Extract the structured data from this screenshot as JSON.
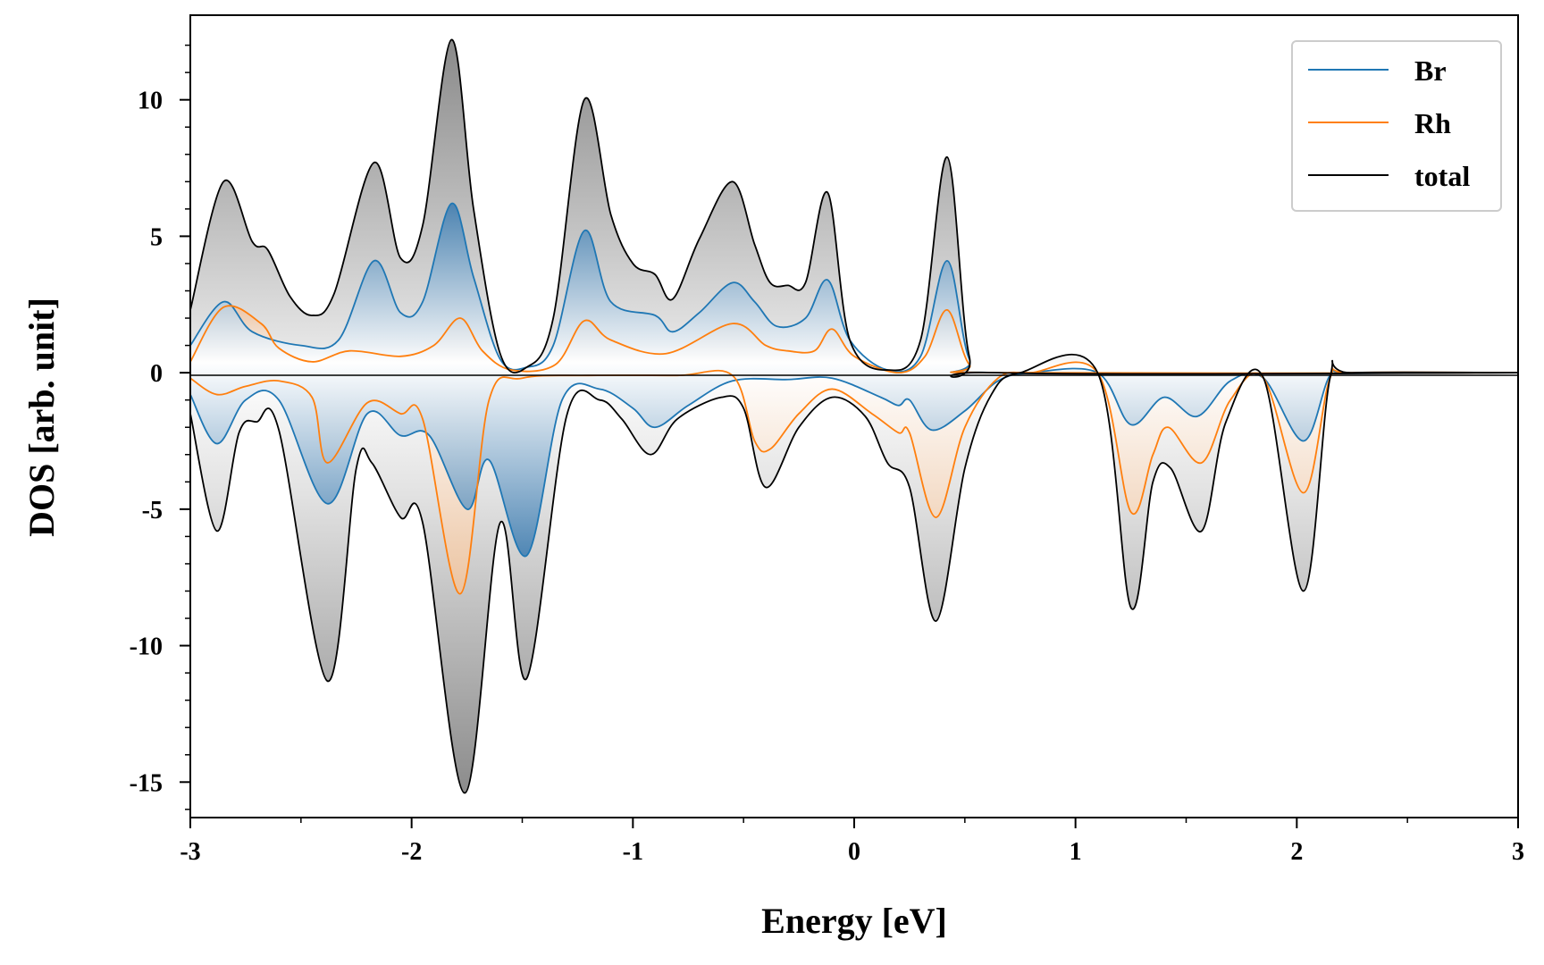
{
  "chart_data": {
    "type": "line",
    "xlabel": "Energy [eV]",
    "ylabel": "DOS [arb. unit]",
    "xlim": [
      -3,
      3
    ],
    "ylim": [
      -16.3,
      13.1
    ],
    "x_ticks": [
      -3,
      -2,
      -1,
      0,
      1,
      2,
      3
    ],
    "x_tick_labels": [
      "-3",
      "-2",
      "-1",
      "0",
      "1",
      "2",
      "3"
    ],
    "y_ticks": [
      10,
      5,
      0,
      -5,
      -10,
      -15
    ],
    "y_tick_labels": [
      "10",
      "5",
      "0",
      "-5",
      "-10",
      "-15"
    ],
    "grid": false,
    "legend_position": "top-right",
    "fills": "gradient shading between each curve and zero",
    "series": [
      {
        "name": "Br",
        "color": "#1f77b4",
        "up": [
          [
            -3,
            1.0
          ],
          [
            -2.85,
            2.6
          ],
          [
            -2.72,
            1.5
          ],
          [
            -2.5,
            1.0
          ],
          [
            -2.33,
            1.2
          ],
          [
            -2.17,
            4.1
          ],
          [
            -2.05,
            2.2
          ],
          [
            -1.95,
            2.6
          ],
          [
            -1.82,
            6.2
          ],
          [
            -1.72,
            3.5
          ],
          [
            -1.6,
            0.5
          ],
          [
            -1.48,
            0.2
          ],
          [
            -1.36,
            1.0
          ],
          [
            -1.22,
            5.2
          ],
          [
            -1.1,
            2.6
          ],
          [
            -0.9,
            2.1
          ],
          [
            -0.82,
            1.5
          ],
          [
            -0.7,
            2.2
          ],
          [
            -0.55,
            3.3
          ],
          [
            -0.45,
            2.6
          ],
          [
            -0.35,
            1.7
          ],
          [
            -0.22,
            2.0
          ],
          [
            -0.12,
            3.4
          ],
          [
            -0.02,
            1.2
          ],
          [
            0.15,
            0.1
          ],
          [
            0.3,
            0.6
          ],
          [
            0.42,
            4.1
          ],
          [
            0.52,
            0.5
          ],
          [
            0.65,
            0.0
          ],
          [
            3,
            0.0
          ]
        ],
        "down": [
          [
            -3,
            -0.8
          ],
          [
            -2.88,
            -2.6
          ],
          [
            -2.75,
            -1.0
          ],
          [
            -2.6,
            -1.0
          ],
          [
            -2.38,
            -4.8
          ],
          [
            -2.2,
            -1.5
          ],
          [
            -2.05,
            -2.3
          ],
          [
            -1.92,
            -2.3
          ],
          [
            -1.75,
            -5.0
          ],
          [
            -1.65,
            -3.2
          ],
          [
            -1.48,
            -6.7
          ],
          [
            -1.32,
            -1.0
          ],
          [
            -1.15,
            -0.6
          ],
          [
            -1.0,
            -1.3
          ],
          [
            -0.9,
            -2.0
          ],
          [
            -0.75,
            -1.2
          ],
          [
            -0.55,
            -0.3
          ],
          [
            -0.3,
            -0.25
          ],
          [
            -0.1,
            -0.2
          ],
          [
            0.12,
            -0.9
          ],
          [
            0.2,
            -1.2
          ],
          [
            0.25,
            -1.0
          ],
          [
            0.35,
            -2.1
          ],
          [
            0.5,
            -1.4
          ],
          [
            0.65,
            -0.3
          ],
          [
            0.8,
            0.0
          ],
          [
            1.1,
            0.0
          ],
          [
            1.25,
            -1.9
          ],
          [
            1.4,
            -0.9
          ],
          [
            1.55,
            -1.6
          ],
          [
            1.7,
            -0.3
          ],
          [
            1.85,
            -0.2
          ],
          [
            2.03,
            -2.5
          ],
          [
            2.15,
            -0.1
          ],
          [
            2.25,
            0.0
          ],
          [
            3,
            0.0
          ]
        ]
      },
      {
        "name": "Rh",
        "color": "#ff7f0e",
        "up": [
          [
            -3,
            0.4
          ],
          [
            -2.85,
            2.4
          ],
          [
            -2.68,
            1.8
          ],
          [
            -2.6,
            0.9
          ],
          [
            -2.45,
            0.4
          ],
          [
            -2.28,
            0.8
          ],
          [
            -2.05,
            0.6
          ],
          [
            -1.9,
            1.0
          ],
          [
            -1.78,
            2.0
          ],
          [
            -1.68,
            0.8
          ],
          [
            -1.55,
            0.1
          ],
          [
            -1.35,
            0.3
          ],
          [
            -1.22,
            1.9
          ],
          [
            -1.1,
            1.2
          ],
          [
            -0.85,
            0.7
          ],
          [
            -0.55,
            1.8
          ],
          [
            -0.4,
            1.0
          ],
          [
            -0.3,
            0.8
          ],
          [
            -0.18,
            0.8
          ],
          [
            -0.1,
            1.6
          ],
          [
            0.0,
            0.6
          ],
          [
            0.2,
            0.0
          ],
          [
            0.32,
            0.6
          ],
          [
            0.42,
            2.3
          ],
          [
            0.52,
            0.3
          ],
          [
            0.65,
            0.0
          ],
          [
            3,
            0.0
          ]
        ],
        "down": [
          [
            -3,
            -0.2
          ],
          [
            -2.88,
            -0.8
          ],
          [
            -2.75,
            -0.5
          ],
          [
            -2.6,
            -0.3
          ],
          [
            -2.45,
            -0.9
          ],
          [
            -2.38,
            -3.3
          ],
          [
            -2.2,
            -1.1
          ],
          [
            -2.05,
            -1.5
          ],
          [
            -1.95,
            -1.7
          ],
          [
            -1.78,
            -8.1
          ],
          [
            -1.65,
            -1.0
          ],
          [
            -1.5,
            -0.2
          ],
          [
            -1.2,
            -0.1
          ],
          [
            -0.8,
            -0.1
          ],
          [
            -0.55,
            -0.1
          ],
          [
            -0.45,
            -2.5
          ],
          [
            -0.38,
            -2.8
          ],
          [
            -0.25,
            -1.5
          ],
          [
            -0.1,
            -0.6
          ],
          [
            0.08,
            -1.5
          ],
          [
            0.2,
            -2.2
          ],
          [
            0.25,
            -2.2
          ],
          [
            0.37,
            -5.3
          ],
          [
            0.5,
            -2.0
          ],
          [
            0.65,
            -0.2
          ],
          [
            0.8,
            0.0
          ],
          [
            1.1,
            0.0
          ],
          [
            1.25,
            -5.1
          ],
          [
            1.35,
            -3.0
          ],
          [
            1.42,
            -2.0
          ],
          [
            1.57,
            -3.3
          ],
          [
            1.7,
            -1.0
          ],
          [
            1.85,
            -0.2
          ],
          [
            2.03,
            -4.4
          ],
          [
            2.15,
            -0.2
          ],
          [
            2.25,
            0.0
          ],
          [
            3,
            0.0
          ]
        ]
      },
      {
        "name": "total",
        "color": "#000000",
        "up": [
          [
            -3,
            2.3
          ],
          [
            -2.85,
            7.0
          ],
          [
            -2.72,
            4.8
          ],
          [
            -2.65,
            4.5
          ],
          [
            -2.55,
            2.8
          ],
          [
            -2.45,
            2.1
          ],
          [
            -2.35,
            2.9
          ],
          [
            -2.17,
            7.7
          ],
          [
            -2.05,
            4.2
          ],
          [
            -1.95,
            5.4
          ],
          [
            -1.82,
            12.2
          ],
          [
            -1.72,
            6.0
          ],
          [
            -1.6,
            0.7
          ],
          [
            -1.48,
            0.2
          ],
          [
            -1.36,
            2.0
          ],
          [
            -1.22,
            10.0
          ],
          [
            -1.1,
            5.8
          ],
          [
            -1.0,
            4.0
          ],
          [
            -0.9,
            3.6
          ],
          [
            -0.82,
            2.7
          ],
          [
            -0.7,
            4.9
          ],
          [
            -0.55,
            7.0
          ],
          [
            -0.45,
            4.7
          ],
          [
            -0.38,
            3.3
          ],
          [
            -0.3,
            3.2
          ],
          [
            -0.22,
            3.3
          ],
          [
            -0.12,
            6.6
          ],
          [
            -0.02,
            1.2
          ],
          [
            0.15,
            0.1
          ],
          [
            0.3,
            1.2
          ],
          [
            0.42,
            7.9
          ],
          [
            0.52,
            0.6
          ],
          [
            0.65,
            0.0
          ],
          [
            3,
            0.0
          ]
        ],
        "down": [
          [
            -3,
            -1.5
          ],
          [
            -2.88,
            -5.8
          ],
          [
            -2.78,
            -2.2
          ],
          [
            -2.7,
            -1.8
          ],
          [
            -2.6,
            -2.1
          ],
          [
            -2.38,
            -11.3
          ],
          [
            -2.25,
            -3.5
          ],
          [
            -2.18,
            -3.3
          ],
          [
            -2.05,
            -5.3
          ],
          [
            -1.95,
            -5.5
          ],
          [
            -1.76,
            -15.4
          ],
          [
            -1.6,
            -5.5
          ],
          [
            -1.48,
            -11.2
          ],
          [
            -1.3,
            -1.6
          ],
          [
            -1.15,
            -1.0
          ],
          [
            -1.05,
            -1.7
          ],
          [
            -0.92,
            -3.0
          ],
          [
            -0.8,
            -1.7
          ],
          [
            -0.6,
            -0.9
          ],
          [
            -0.5,
            -1.3
          ],
          [
            -0.4,
            -4.2
          ],
          [
            -0.25,
            -2.0
          ],
          [
            -0.1,
            -0.9
          ],
          [
            0.05,
            -1.6
          ],
          [
            0.15,
            -3.3
          ],
          [
            0.25,
            -4.2
          ],
          [
            0.37,
            -9.1
          ],
          [
            0.5,
            -3.5
          ],
          [
            0.62,
            -0.8
          ],
          [
            0.75,
            0.0
          ],
          [
            1.1,
            0.0
          ],
          [
            1.25,
            -8.6
          ],
          [
            1.35,
            -4.0
          ],
          [
            1.43,
            -3.5
          ],
          [
            1.57,
            -5.8
          ],
          [
            1.68,
            -1.8
          ],
          [
            1.85,
            -0.2
          ],
          [
            2.03,
            -8.0
          ],
          [
            2.15,
            -0.2
          ],
          [
            2.25,
            0.0
          ],
          [
            3,
            0.0
          ]
        ]
      }
    ]
  }
}
